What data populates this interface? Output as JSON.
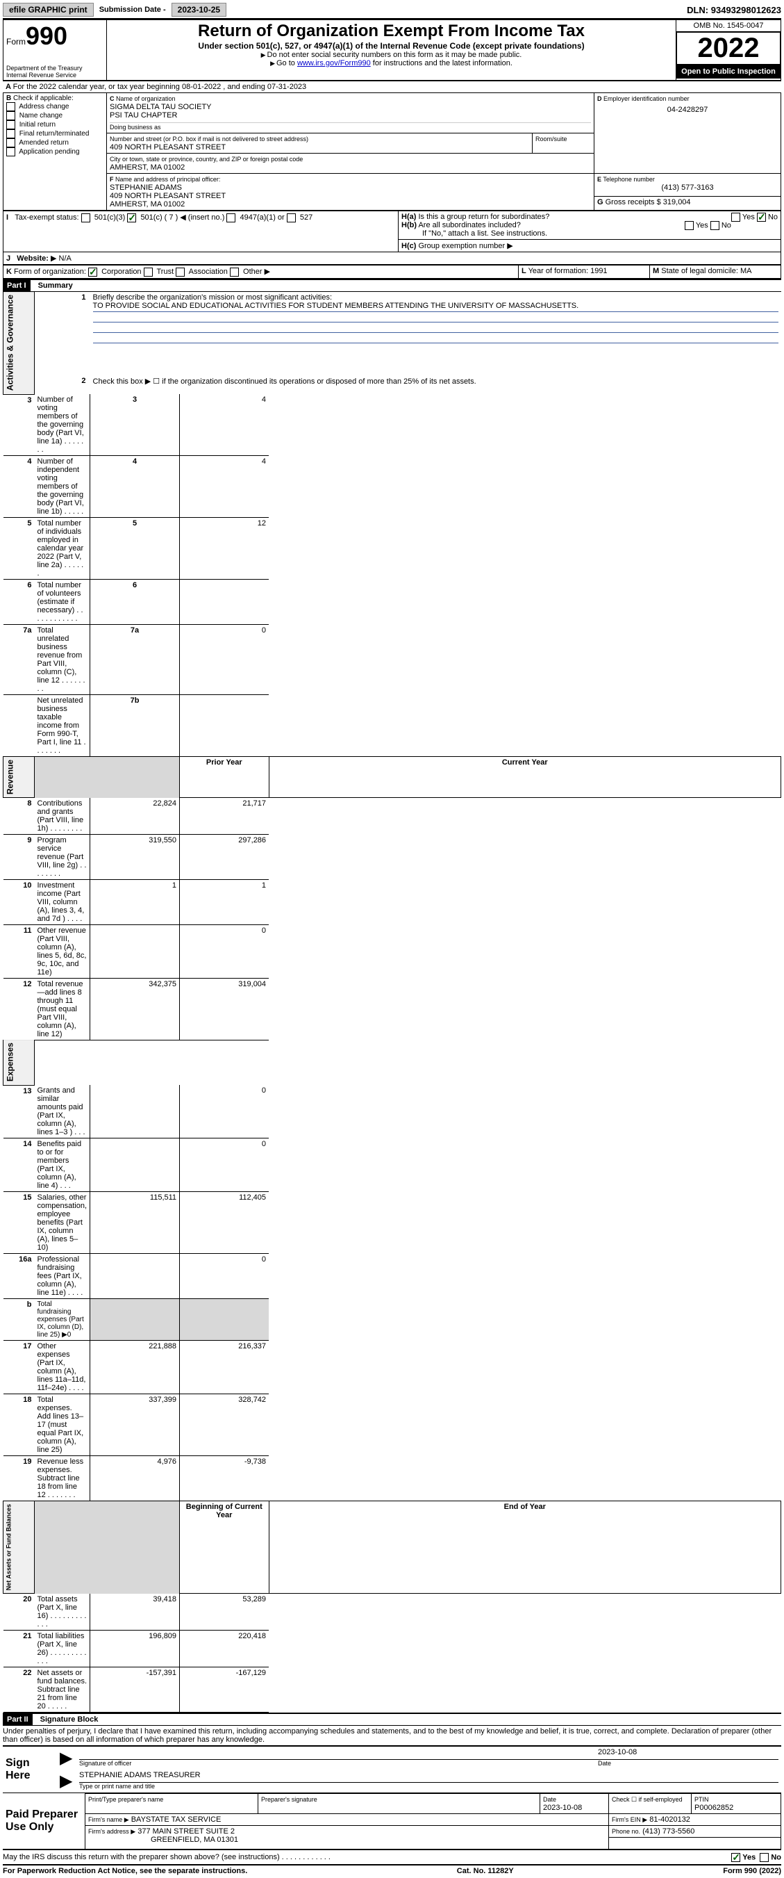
{
  "topbar": {
    "efile": "efile GRAPHIC print",
    "submission_label": "Submission Date -",
    "submission_date": "2023-10-25",
    "dln_label": "DLN:",
    "dln": "93493298012623"
  },
  "header": {
    "form_word": "Form",
    "form_number": "990",
    "dept": "Department of the Treasury",
    "irs": "Internal Revenue Service",
    "title": "Return of Organization Exempt From Income Tax",
    "subtitle": "Under section 501(c), 527, or 4947(a)(1) of the Internal Revenue Code (except private foundations)",
    "note1": "Do not enter social security numbers on this form as it may be made public.",
    "note2_prefix": "Go to ",
    "note2_link": "www.irs.gov/Form990",
    "note2_suffix": " for instructions and the latest information.",
    "omb": "OMB No. 1545-0047",
    "year": "2022",
    "public": "Open to Public Inspection"
  },
  "sectionA": {
    "line": "For the 2022 calendar year, or tax year beginning 08-01-2022   , and ending 07-31-2023",
    "b_label": "Check if applicable:",
    "b_opts": [
      "Address change",
      "Name change",
      "Initial return",
      "Final return/terminated",
      "Amended return",
      "Application pending"
    ],
    "c_label": "Name of organization",
    "c_name1": "SIGMA DELTA TAU SOCIETY",
    "c_name2": "PSI TAU CHAPTER",
    "dba_label": "Doing business as",
    "addr_label": "Number and street (or P.O. box if mail is not delivered to street address)",
    "room_label": "Room/suite",
    "addr": "409 NORTH PLEASANT STREET",
    "city_label": "City or town, state or province, country, and ZIP or foreign postal code",
    "city": "AMHERST, MA  01002",
    "d_label": "Employer identification number",
    "d_val": "04-2428297",
    "e_label": "Telephone number",
    "e_val": "(413) 577-3163",
    "g_label": "Gross receipts $",
    "g_val": "319,004",
    "f_label": "Name and address of principal officer:",
    "f_name": "STEPHANIE ADAMS",
    "f_addr1": "409 NORTH PLEASANT STREET",
    "f_addr2": "AMHERST, MA  01002",
    "ha_label": "Is this a group return for subordinates?",
    "hb_label": "Are all subordinates included?",
    "hb_note": "If \"No,\" attach a list. See instructions.",
    "hc_label": "Group exemption number",
    "i_label": "Tax-exempt status:",
    "i_opts": [
      "501(c)(3)",
      "501(c) ( 7 ) ◀ (insert no.)",
      "4947(a)(1) or",
      "527"
    ],
    "j_label": "Website:",
    "j_val": "N/A",
    "k_label": "Form of organization:",
    "k_opts": [
      "Corporation",
      "Trust",
      "Association",
      "Other"
    ],
    "l_label": "Year of formation:",
    "l_val": "1991",
    "m_label": "State of legal domicile:",
    "m_val": "MA",
    "yes": "Yes",
    "no": "No"
  },
  "part1": {
    "header": "Part I",
    "title": "Summary",
    "q1": "Briefly describe the organization's mission or most significant activities:",
    "mission": "TO PROVIDE SOCIAL AND EDUCATIONAL ACTIVITIES FOR STUDENT MEMBERS ATTENDING THE UNIVERSITY OF MASSACHUSETTS.",
    "q2": "Check this box ▶ ☐  if the organization discontinued its operations or disposed of more than 25% of its net assets.",
    "vert_activities": "Activities & Governance",
    "vert_revenue": "Revenue",
    "vert_expenses": "Expenses",
    "vert_net": "Net Assets or Fund Balances",
    "prior_year": "Prior Year",
    "current_year": "Current Year",
    "beg_year": "Beginning of Current Year",
    "end_year": "End of Year",
    "lines_gov": [
      {
        "n": "3",
        "t": "Number of voting members of the governing body (Part VI, line 1a)  .    .    .    .    .    .    .",
        "box": "3",
        "v": "4"
      },
      {
        "n": "4",
        "t": "Number of independent voting members of the governing body (Part VI, line 1b)  .    .    .    .    .",
        "box": "4",
        "v": "4"
      },
      {
        "n": "5",
        "t": "Total number of individuals employed in calendar year 2022 (Part V, line 2a)  .    .    .    .    .    .",
        "box": "5",
        "v": "12"
      },
      {
        "n": "6",
        "t": "Total number of volunteers (estimate if necessary)  .    .    .    .    .    .    .    .    .    .    .    .",
        "box": "6",
        "v": ""
      },
      {
        "n": "7a",
        "t": "Total unrelated business revenue from Part VIII, column (C), line 12  .    .    .    .    .    .    .    .",
        "box": "7a",
        "v": "0"
      },
      {
        "n": "",
        "t": "Net unrelated business taxable income from Form 990-T, Part I, line 11  .    .    .    .    .    .    .",
        "box": "7b",
        "v": ""
      }
    ],
    "lines_rev": [
      {
        "n": "8",
        "t": "Contributions and grants (Part VIII, line 1h)  .    .    .    .    .    .    .    .",
        "p": "22,824",
        "c": "21,717"
      },
      {
        "n": "9",
        "t": "Program service revenue (Part VIII, line 2g)  .    .    .    .    .    .    .    .",
        "p": "319,550",
        "c": "297,286"
      },
      {
        "n": "10",
        "t": "Investment income (Part VIII, column (A), lines 3, 4, and 7d )  .    .    .    .",
        "p": "1",
        "c": "1"
      },
      {
        "n": "11",
        "t": "Other revenue (Part VIII, column (A), lines 5, 6d, 8c, 9c, 10c, and 11e)",
        "p": "",
        "c": "0"
      },
      {
        "n": "12",
        "t": "Total revenue—add lines 8 through 11 (must equal Part VIII, column (A), line 12)",
        "p": "342,375",
        "c": "319,004"
      }
    ],
    "lines_exp": [
      {
        "n": "13",
        "t": "Grants and similar amounts paid (Part IX, column (A), lines 1–3 )  .    .    .",
        "p": "",
        "c": "0"
      },
      {
        "n": "14",
        "t": "Benefits paid to or for members (Part IX, column (A), line 4)  .    .    .",
        "p": "",
        "c": "0"
      },
      {
        "n": "15",
        "t": "Salaries, other compensation, employee benefits (Part IX, column (A), lines 5–10)",
        "p": "115,511",
        "c": "112,405"
      },
      {
        "n": "16a",
        "t": "Professional fundraising fees (Part IX, column (A), line 11e)  .    .    .    .",
        "p": "",
        "c": "0"
      },
      {
        "n": "b",
        "t": "Total fundraising expenses (Part IX, column (D), line 25) ▶0",
        "p": null,
        "c": null
      },
      {
        "n": "17",
        "t": "Other expenses (Part IX, column (A), lines 11a–11d, 11f–24e)  .    .    .    .",
        "p": "221,888",
        "c": "216,337"
      },
      {
        "n": "18",
        "t": "Total expenses. Add lines 13–17 (must equal Part IX, column (A), line 25)",
        "p": "337,399",
        "c": "328,742"
      },
      {
        "n": "19",
        "t": "Revenue less expenses. Subtract line 18 from line 12  .    .    .    .    .    .    .",
        "p": "4,976",
        "c": "-9,738"
      }
    ],
    "lines_net": [
      {
        "n": "20",
        "t": "Total assets (Part X, line 16)  .    .    .    .    .    .    .    .    .    .    .    .",
        "p": "39,418",
        "c": "53,289"
      },
      {
        "n": "21",
        "t": "Total liabilities (Part X, line 26)  .    .    .    .    .    .    .    .    .    .    .    .",
        "p": "196,809",
        "c": "220,418"
      },
      {
        "n": "22",
        "t": "Net assets or fund balances. Subtract line 21 from line 20  .    .    .    .    .",
        "p": "-157,391",
        "c": "-167,129"
      }
    ]
  },
  "part2": {
    "header": "Part II",
    "title": "Signature Block",
    "decl": "Under penalties of perjury, I declare that I have examined this return, including accompanying schedules and statements, and to the best of my knowledge and belief, it is true, correct, and complete. Declaration of preparer (other than officer) is based on all information of which preparer has any knowledge.",
    "sign_here": "Sign Here",
    "sig_officer": "Signature of officer",
    "sig_date": "Date",
    "sig_date_val": "2023-10-08",
    "officer_name": "STEPHANIE ADAMS  TREASURER",
    "officer_label": "Type or print name and title",
    "paid_prep": "Paid Preparer Use Only",
    "pt_name_label": "Print/Type preparer's name",
    "pt_sig_label": "Preparer's signature",
    "pt_date_label": "Date",
    "pt_date": "2023-10-08",
    "pt_check_label": "Check ☐ if self-employed",
    "ptin_label": "PTIN",
    "ptin": "P00062852",
    "firm_name_label": "Firm's name    ▶",
    "firm_name": "BAYSTATE TAX SERVICE",
    "firm_ein_label": "Firm's EIN ▶",
    "firm_ein": "81-4020132",
    "firm_addr_label": "Firm's address ▶",
    "firm_addr1": "377 MAIN STREET SUITE 2",
    "firm_addr2": "GREENFIELD, MA  01301",
    "phone_label": "Phone no.",
    "phone": "(413) 773-5560",
    "discuss": "May the IRS discuss this return with the preparer shown above? (see instructions)  .    .    .    .    .    .    .    .    .    .    .    ."
  },
  "footer": {
    "left": "For Paperwork Reduction Act Notice, see the separate instructions.",
    "mid": "Cat. No. 11282Y",
    "right": "Form 990 (2022)"
  }
}
